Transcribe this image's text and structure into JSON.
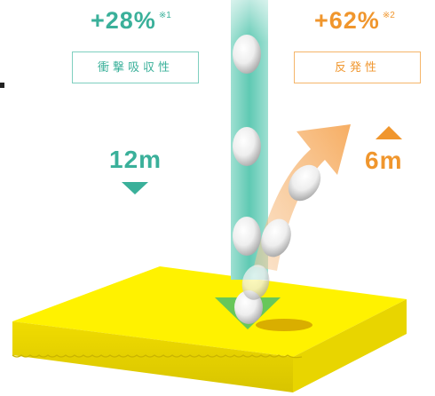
{
  "impact": {
    "percent": "+28%",
    "note": "※1",
    "label": "衝撃吸収性",
    "height": "12m",
    "color": "#3ab09a"
  },
  "rebound": {
    "percent": "+62%",
    "note": "※2",
    "label": "反発性",
    "height": "6m",
    "color": "#f0962d"
  },
  "mat": {
    "color": "#f5e600"
  }
}
